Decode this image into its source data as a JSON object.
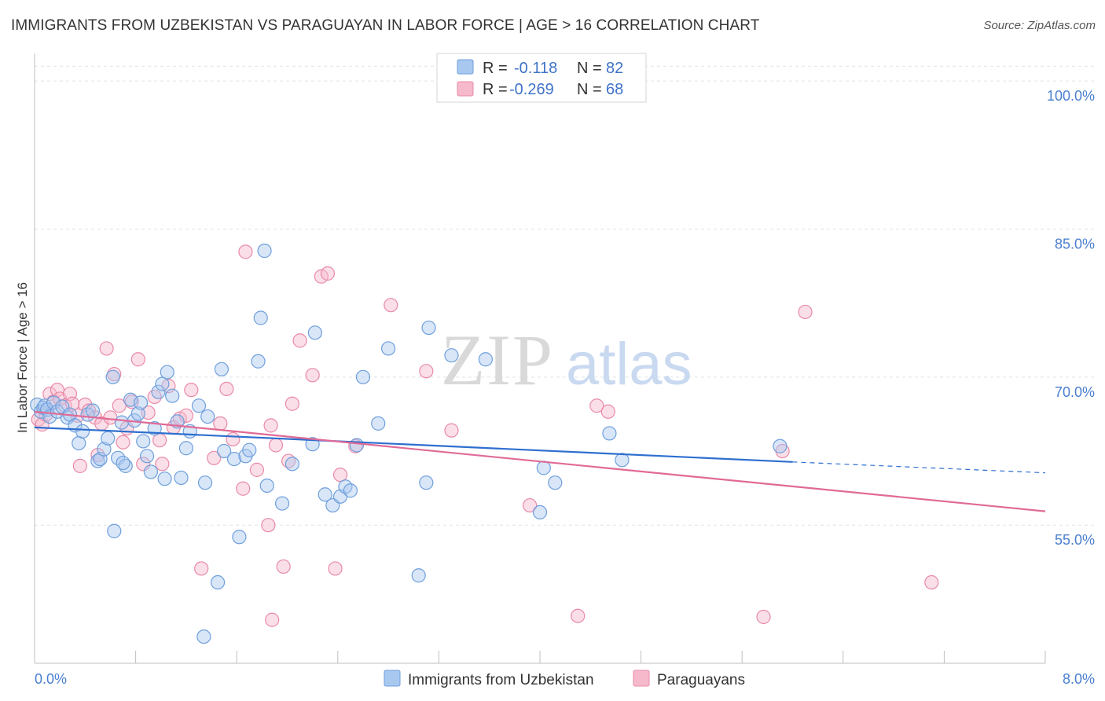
{
  "title": "IMMIGRANTS FROM UZBEKISTAN VS PARAGUAYAN IN LABOR FORCE | AGE > 16 CORRELATION CHART",
  "source": "Source: ZipAtlas.com",
  "watermark": {
    "zip": "ZIP",
    "atlas": "atlas"
  },
  "colors": {
    "blue_fill": "#a9c8f0",
    "blue_stroke": "#6f9fdc",
    "blue_line": "#2e6fcf",
    "pink_fill": "#f6b9cc",
    "pink_stroke": "#e98aa8",
    "pink_line": "#e06a96",
    "axis_text": "#4a7fd0",
    "grid": "#dde3ea"
  },
  "legend": {
    "r_label": "R =",
    "n_label": "N =",
    "entries": [
      {
        "r": "-0.118",
        "n": "82"
      },
      {
        "r": "-0.269",
        "n": "68"
      }
    ]
  },
  "chart_data": {
    "type": "scatter",
    "title": "IMMIGRANTS FROM UZBEKISTAN VS PARAGUAYAN IN LABOR FORCE | AGE > 16 CORRELATION CHART",
    "xlabel": "",
    "ylabel": "In Labor Force | Age > 16",
    "xlim": [
      0,
      8
    ],
    "ylim": [
      41,
      102
    ],
    "x_tick_labels": [
      "0.0%",
      "8.0%"
    ],
    "y_ticks": [
      55,
      70,
      85,
      100
    ],
    "y_tick_labels": [
      "55.0%",
      "70.0%",
      "85.0%",
      "100.0%"
    ],
    "grid": true,
    "legend_position": "top-center",
    "series": [
      {
        "name": "Immigrants from Uzbekistan",
        "color": "#6f9fdc",
        "r": -0.118,
        "n": 82,
        "trend": {
          "x": [
            0.0,
            6.0
          ],
          "y": [
            64.9,
            61.4
          ],
          "dashed_to_x": 8.0,
          "dashed_y": 60.3
        },
        "points": [
          [
            0.02,
            67.2
          ],
          [
            0.05,
            66.5
          ],
          [
            0.07,
            66.9
          ],
          [
            0.08,
            67.1
          ],
          [
            0.1,
            66.7
          ],
          [
            0.12,
            66.0
          ],
          [
            0.15,
            67.4
          ],
          [
            0.18,
            66.5
          ],
          [
            0.22,
            67.0
          ],
          [
            0.26,
            65.9
          ],
          [
            0.28,
            66.2
          ],
          [
            0.32,
            65.1
          ],
          [
            0.35,
            63.3
          ],
          [
            0.38,
            64.5
          ],
          [
            0.42,
            66.2
          ],
          [
            0.46,
            66.6
          ],
          [
            0.5,
            61.5
          ],
          [
            0.52,
            61.7
          ],
          [
            0.55,
            62.7
          ],
          [
            0.58,
            63.8
          ],
          [
            0.62,
            70.0
          ],
          [
            0.63,
            54.4
          ],
          [
            0.66,
            61.8
          ],
          [
            0.69,
            65.4
          ],
          [
            0.72,
            61.0
          ],
          [
            0.76,
            67.7
          ],
          [
            0.79,
            65.6
          ],
          [
            0.82,
            66.3
          ],
          [
            0.84,
            67.4
          ],
          [
            0.86,
            63.5
          ],
          [
            0.89,
            62.0
          ],
          [
            0.92,
            60.4
          ],
          [
            0.95,
            64.8
          ],
          [
            0.98,
            68.5
          ],
          [
            1.01,
            69.3
          ],
          [
            1.03,
            59.7
          ],
          [
            1.05,
            70.5
          ],
          [
            1.09,
            68.1
          ],
          [
            1.13,
            65.5
          ],
          [
            1.16,
            59.8
          ],
          [
            1.2,
            62.8
          ],
          [
            1.23,
            64.5
          ],
          [
            1.3,
            67.1
          ],
          [
            1.35,
            59.3
          ],
          [
            1.37,
            66.0
          ],
          [
            1.45,
            49.2
          ],
          [
            1.48,
            70.8
          ],
          [
            1.5,
            62.5
          ],
          [
            1.58,
            61.7
          ],
          [
            1.62,
            53.8
          ],
          [
            1.67,
            62.0
          ],
          [
            1.7,
            62.6
          ],
          [
            1.77,
            71.6
          ],
          [
            1.79,
            76.0
          ],
          [
            1.82,
            82.8
          ],
          [
            1.84,
            59.0
          ],
          [
            1.96,
            57.2
          ],
          [
            2.04,
            61.2
          ],
          [
            2.2,
            63.2
          ],
          [
            2.22,
            74.5
          ],
          [
            2.3,
            58.1
          ],
          [
            2.36,
            57.0
          ],
          [
            2.42,
            57.9
          ],
          [
            2.46,
            58.9
          ],
          [
            2.5,
            58.5
          ],
          [
            2.55,
            63.1
          ],
          [
            2.6,
            70.0
          ],
          [
            2.72,
            65.3
          ],
          [
            2.8,
            72.9
          ],
          [
            3.04,
            49.9
          ],
          [
            3.1,
            59.3
          ],
          [
            3.12,
            75.0
          ],
          [
            3.3,
            72.2
          ],
          [
            3.57,
            71.8
          ],
          [
            4.0,
            56.3
          ],
          [
            4.03,
            60.8
          ],
          [
            4.12,
            59.3
          ],
          [
            4.55,
            64.3
          ],
          [
            4.65,
            61.6
          ],
          [
            5.9,
            63.0
          ],
          [
            1.34,
            43.7
          ],
          [
            0.7,
            61.3
          ]
        ]
      },
      {
        "name": "Paraguayans",
        "color": "#e98aa8",
        "r": -0.269,
        "n": 68,
        "trend": {
          "x": [
            0.0,
            8.0
          ],
          "y": [
            66.5,
            56.4
          ]
        },
        "points": [
          [
            0.03,
            65.7
          ],
          [
            0.06,
            65.2
          ],
          [
            0.09,
            66.2
          ],
          [
            0.12,
            68.3
          ],
          [
            0.15,
            67.5
          ],
          [
            0.18,
            68.7
          ],
          [
            0.2,
            67.8
          ],
          [
            0.24,
            67.1
          ],
          [
            0.28,
            68.3
          ],
          [
            0.3,
            67.3
          ],
          [
            0.34,
            66.1
          ],
          [
            0.36,
            61.0
          ],
          [
            0.4,
            67.2
          ],
          [
            0.43,
            66.6
          ],
          [
            0.48,
            65.9
          ],
          [
            0.5,
            62.1
          ],
          [
            0.53,
            65.3
          ],
          [
            0.57,
            72.9
          ],
          [
            0.6,
            65.9
          ],
          [
            0.63,
            70.3
          ],
          [
            0.67,
            67.1
          ],
          [
            0.7,
            63.4
          ],
          [
            0.73,
            64.8
          ],
          [
            0.77,
            67.5
          ],
          [
            0.82,
            71.8
          ],
          [
            0.86,
            61.2
          ],
          [
            0.9,
            66.4
          ],
          [
            0.95,
            68.0
          ],
          [
            0.99,
            63.6
          ],
          [
            1.01,
            61.2
          ],
          [
            1.06,
            69.1
          ],
          [
            1.1,
            64.9
          ],
          [
            1.15,
            65.8
          ],
          [
            1.2,
            66.1
          ],
          [
            1.24,
            68.7
          ],
          [
            1.32,
            50.6
          ],
          [
            1.42,
            61.8
          ],
          [
            1.47,
            65.3
          ],
          [
            1.52,
            68.8
          ],
          [
            1.57,
            63.7
          ],
          [
            1.65,
            58.7
          ],
          [
            1.67,
            82.7
          ],
          [
            1.76,
            60.6
          ],
          [
            1.85,
            55.0
          ],
          [
            1.87,
            65.1
          ],
          [
            1.88,
            45.4
          ],
          [
            1.91,
            63.1
          ],
          [
            1.97,
            50.8
          ],
          [
            2.01,
            61.5
          ],
          [
            2.04,
            67.3
          ],
          [
            2.1,
            73.7
          ],
          [
            2.2,
            70.2
          ],
          [
            2.27,
            80.2
          ],
          [
            2.32,
            80.5
          ],
          [
            2.38,
            50.6
          ],
          [
            2.42,
            60.1
          ],
          [
            2.54,
            63.0
          ],
          [
            2.82,
            77.3
          ],
          [
            3.1,
            70.6
          ],
          [
            3.3,
            64.6
          ],
          [
            3.92,
            57.0
          ],
          [
            4.3,
            45.8
          ],
          [
            4.45,
            67.1
          ],
          [
            4.54,
            66.5
          ],
          [
            5.77,
            45.7
          ],
          [
            5.92,
            62.5
          ],
          [
            6.1,
            76.6
          ],
          [
            7.1,
            49.2
          ]
        ]
      }
    ]
  },
  "bottom_legend": [
    "Immigrants from Uzbekistan",
    "Paraguayans"
  ]
}
